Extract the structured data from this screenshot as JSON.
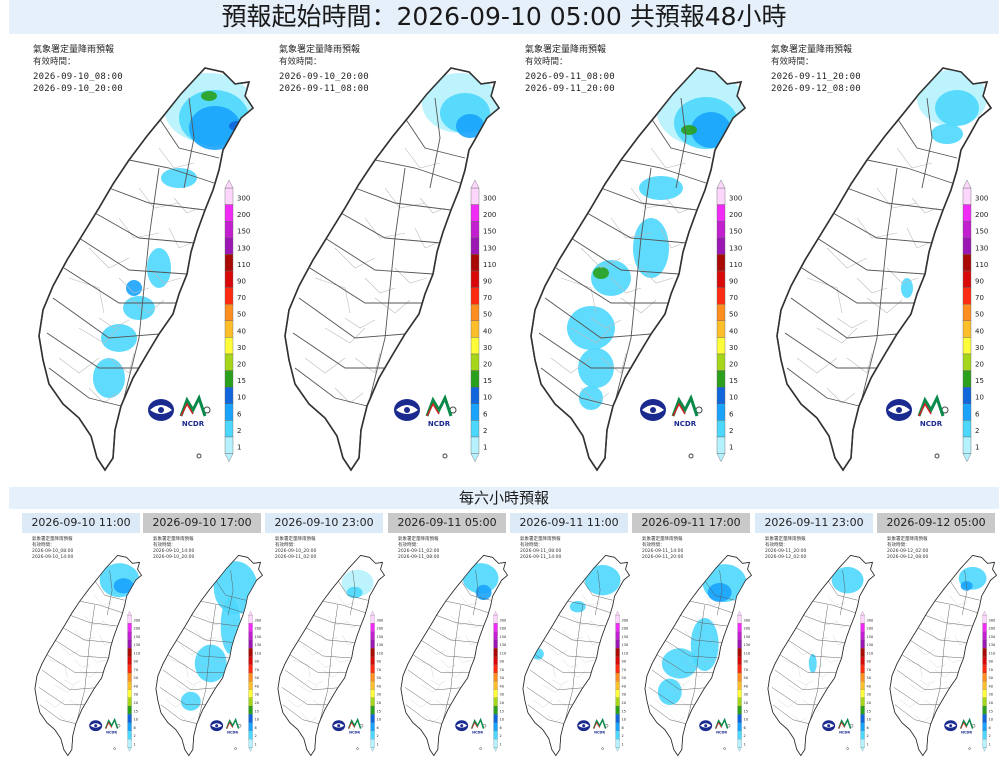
{
  "header": {
    "title": "預報起始時間：2026-09-10 05:00  共預報48小時"
  },
  "panel_labels": {
    "product": "氣象署定量降雨預報",
    "valid": "有效時間："
  },
  "legend": {
    "levels": [
      "300",
      "200",
      "150",
      "130",
      "110",
      "90",
      "70",
      "50",
      "40",
      "30",
      "20",
      "15",
      "10",
      "6",
      "2",
      "1"
    ],
    "colors": [
      "#fdd6fd",
      "#f12bf6",
      "#c21fd0",
      "#9a17b3",
      "#a90a05",
      "#d9090a",
      "#fd2b12",
      "#fd8e1f",
      "#fdbe2b",
      "#fdfd3a",
      "#a5d61a",
      "#2ba01c",
      "#1066da",
      "#1aa3fd",
      "#4dd7fd",
      "#b5f2fd"
    ]
  },
  "logos": {
    "ncdr": "NCDR"
  },
  "big_panels": [
    {
      "start": "2026-09-10_08:00",
      "end": "2026-09-10_20:00"
    },
    {
      "start": "2026-09-10_20:00",
      "end": "2026-09-11_08:00"
    },
    {
      "start": "2026-09-11_08:00",
      "end": "2026-09-11_20:00"
    },
    {
      "start": "2026-09-11_20:00",
      "end": "2026-09-12_08:00"
    }
  ],
  "six_hour": {
    "title": "每六小時預報",
    "panels": [
      {
        "label": "2026-09-10 11:00",
        "start": "2026-09-10_08:00",
        "end": "2026-09-10_14:00"
      },
      {
        "label": "2026-09-10 17:00",
        "start": "2026-09-10_14:00",
        "end": "2026-09-10_20:00"
      },
      {
        "label": "2026-09-10 23:00",
        "start": "2026-09-10_20:00",
        "end": "2026-09-11_02:00"
      },
      {
        "label": "2026-09-11 05:00",
        "start": "2026-09-11_02:00",
        "end": "2026-09-11_08:00"
      },
      {
        "label": "2026-09-11 11:00",
        "start": "2026-09-11_08:00",
        "end": "2026-09-11_14:00"
      },
      {
        "label": "2026-09-11 17:00",
        "start": "2026-09-11_14:00",
        "end": "2026-09-11_20:00"
      },
      {
        "label": "2026-09-11 23:00",
        "start": "2026-09-11_20:00",
        "end": "2026-09-12_02:00"
      },
      {
        "label": "2026-09-12 05:00",
        "start": "2026-09-12_02:00",
        "end": "2026-09-12_08:00"
      }
    ]
  }
}
